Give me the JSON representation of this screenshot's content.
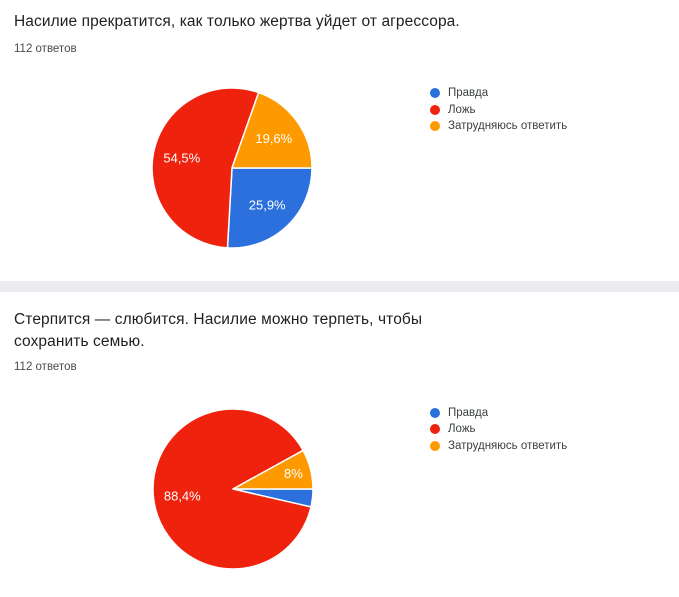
{
  "theme": {
    "card_background": "#ffffff",
    "divider_color": "#ebebf0",
    "title_color": "#212121",
    "subtitle_color": "#4a4a4a",
    "legend_text_color": "#3c4043",
    "slice_label_color": "#ffffff",
    "palette": {
      "blue": "#2b70dc",
      "red": "#ee220d",
      "orange": "#ff9900"
    }
  },
  "chart_data": [
    {
      "type": "pie",
      "title": "Насилие прекратится, как только жертва уйдет от агрессора.",
      "title_lines": [
        "Насилие прекратится, как только жертва уйдет от агрессора."
      ],
      "subtitle": "112 ответов",
      "legend_position": "right",
      "start_angle_deg": 90,
      "slices": [
        {
          "label": "Правда",
          "value": 25.9,
          "pct_label": "25,9%",
          "color": "#2b70dc"
        },
        {
          "label": "Ложь",
          "value": 54.5,
          "pct_label": "54,5%",
          "color": "#ee220d"
        },
        {
          "label": "Затрудняюсь ответить",
          "value": 19.6,
          "pct_label": "19,6%",
          "color": "#ff9900"
        }
      ]
    },
    {
      "type": "pie",
      "title": "Стерпится — слюбится. Насилие можно терпеть, чтобы сохранить семью.",
      "title_lines": [
        "Стерпится — слюбится. Насилие можно терпеть, чтобы",
        "сохранить семью."
      ],
      "subtitle": "112 ответов",
      "legend_position": "right",
      "start_angle_deg": 90,
      "slices": [
        {
          "label": "Правда",
          "value": 3.6,
          "pct_label": "",
          "color": "#2b70dc"
        },
        {
          "label": "Ложь",
          "value": 88.4,
          "pct_label": "88,4%",
          "color": "#ee220d"
        },
        {
          "label": "Затрудняюсь ответить",
          "value": 8,
          "pct_label": "8%",
          "color": "#ff9900"
        }
      ]
    }
  ]
}
